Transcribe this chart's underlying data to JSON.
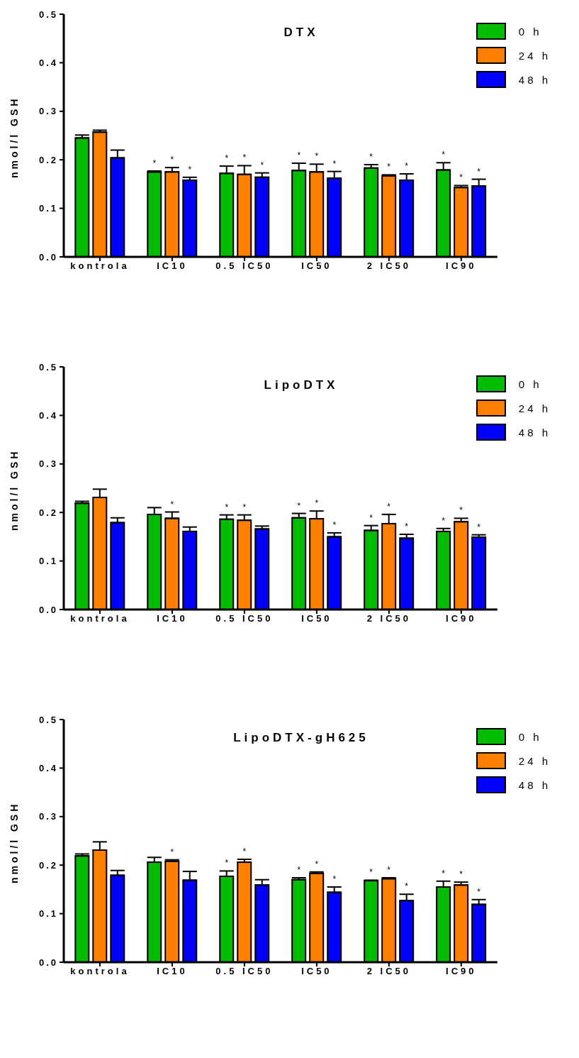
{
  "chart_data": [
    {
      "type": "bar",
      "title": "DTX",
      "ylabel": "nmol/l GSH",
      "categories": [
        "kontrola",
        "IC10",
        "0.5 IC50",
        "IC50",
        "2 IC50",
        "IC90"
      ],
      "ylim": [
        0,
        0.5
      ],
      "yticks": [
        {
          "value": 0,
          "label": "0.0"
        },
        {
          "value": 0.1,
          "label": "0.1"
        },
        {
          "value": 0.2,
          "label": "0.2"
        },
        {
          "value": 0.3,
          "label": "0.3"
        },
        {
          "value": 0.4,
          "label": "0.4"
        },
        {
          "value": 0.5,
          "label": "0.5"
        }
      ],
      "legend": "top right",
      "series": [
        {
          "name": "0 h",
          "color": "#00bb00",
          "values": [
            0.245,
            0.175,
            0.172,
            0.178,
            0.183,
            0.179
          ],
          "errors": [
            [
              0.245,
              0.251
            ],
            [
              0.175,
              0.177
            ],
            [
              0.172,
              0.187
            ],
            [
              0.178,
              0.193
            ],
            [
              0.183,
              0.19
            ],
            [
              0.179,
              0.194
            ]
          ],
          "value_labels": [
            null,
            "*",
            "*",
            "*",
            "*",
            "*"
          ]
        },
        {
          "name": "24 h",
          "color": "#ff7f00",
          "values": [
            0.257,
            0.175,
            0.17,
            0.175,
            0.167,
            0.143
          ],
          "errors": [
            [
              0.257,
              0.261
            ],
            [
              0.175,
              0.184
            ],
            [
              0.17,
              0.188
            ],
            [
              0.175,
              0.191
            ],
            [
              0.167,
              0.169
            ],
            [
              0.143,
              0.147
            ]
          ],
          "value_labels": [
            null,
            "*",
            "*",
            "*",
            "*",
            "*"
          ]
        },
        {
          "name": "48 h",
          "color": "#0000ff",
          "values": [
            0.204,
            0.158,
            0.164,
            0.162,
            0.158,
            0.146
          ],
          "errors": [
            [
              0.204,
              0.22
            ],
            [
              0.158,
              0.164
            ],
            [
              0.164,
              0.173
            ],
            [
              0.162,
              0.176
            ],
            [
              0.158,
              0.171
            ],
            [
              0.146,
              0.16
            ]
          ],
          "value_labels": [
            null,
            "*",
            "*",
            "*",
            "*",
            "*"
          ]
        }
      ]
    },
    {
      "type": "bar",
      "title": "LipoDTX",
      "ylabel": "nmol/l GSH",
      "categories": [
        "kontrola",
        "IC10",
        "0.5 IC50",
        "IC50",
        "2 IC50",
        "IC90"
      ],
      "ylim": [
        0,
        0.5
      ],
      "yticks": [
        {
          "value": 0,
          "label": "0.0"
        },
        {
          "value": 0.1,
          "label": "0.1"
        },
        {
          "value": 0.2,
          "label": "0.2"
        },
        {
          "value": 0.3,
          "label": "0.3"
        },
        {
          "value": 0.4,
          "label": "0.4"
        },
        {
          "value": 0.5,
          "label": "0.5"
        }
      ],
      "legend": "top right",
      "series": [
        {
          "name": "0 h",
          "color": "#00bb00",
          "values": [
            0.219,
            0.196,
            0.186,
            0.189,
            0.163,
            0.161
          ],
          "errors": [
            [
              0.219,
              0.223
            ],
            [
              0.196,
              0.21
            ],
            [
              0.186,
              0.195
            ],
            [
              0.189,
              0.198
            ],
            [
              0.163,
              0.173
            ],
            [
              0.161,
              0.167
            ]
          ],
          "value_labels": [
            null,
            null,
            "*",
            "*",
            "*",
            "*"
          ]
        },
        {
          "name": "24 h",
          "color": "#ff7f00",
          "values": [
            0.231,
            0.188,
            0.184,
            0.187,
            0.177,
            0.181
          ],
          "errors": [
            [
              0.231,
              0.248
            ],
            [
              0.188,
              0.201
            ],
            [
              0.184,
              0.195
            ],
            [
              0.187,
              0.203
            ],
            [
              0.177,
              0.196
            ],
            [
              0.181,
              0.188
            ]
          ],
          "value_labels": [
            null,
            "*",
            "*",
            "*",
            "*",
            "*"
          ]
        },
        {
          "name": "48 h",
          "color": "#0000ff",
          "values": [
            0.179,
            0.161,
            0.166,
            0.15,
            0.147,
            0.149
          ],
          "errors": [
            [
              0.179,
              0.189
            ],
            [
              0.161,
              0.17
            ],
            [
              0.166,
              0.172
            ],
            [
              0.15,
              0.158
            ],
            [
              0.147,
              0.155
            ],
            [
              0.149,
              0.154
            ]
          ],
          "value_labels": [
            null,
            null,
            null,
            "*",
            "*",
            "*"
          ]
        }
      ]
    },
    {
      "type": "bar",
      "title": "LipoDTX-gH625",
      "ylabel": "nmol/l GSH",
      "categories": [
        "kontrola",
        "IC10",
        "0.5 IC50",
        "IC50",
        "2 IC50",
        "IC90"
      ],
      "ylim": [
        0,
        0.5
      ],
      "yticks": [
        {
          "value": 0,
          "label": "0.0"
        },
        {
          "value": 0.1,
          "label": "0.1"
        },
        {
          "value": 0.2,
          "label": "0.2"
        },
        {
          "value": 0.3,
          "label": "0.3"
        },
        {
          "value": 0.4,
          "label": "0.4"
        },
        {
          "value": 0.5,
          "label": "0.5"
        }
      ],
      "legend": "top right",
      "series": [
        {
          "name": "0 h",
          "color": "#00bb00",
          "values": [
            0.219,
            0.206,
            0.177,
            0.17,
            0.168,
            0.155
          ],
          "errors": [
            [
              0.219,
              0.223
            ],
            [
              0.206,
              0.216
            ],
            [
              0.177,
              0.188
            ],
            [
              0.17,
              0.174
            ],
            [
              0.168,
              0.169
            ],
            [
              0.155,
              0.167
            ]
          ],
          "value_labels": [
            null,
            null,
            "*",
            "*",
            "*",
            "*"
          ]
        },
        {
          "name": "24 h",
          "color": "#ff7f00",
          "values": [
            0.231,
            0.208,
            0.206,
            0.183,
            0.172,
            0.159
          ],
          "errors": [
            [
              0.231,
              0.248
            ],
            [
              0.208,
              0.211
            ],
            [
              0.206,
              0.212
            ],
            [
              0.183,
              0.186
            ],
            [
              0.172,
              0.174
            ],
            [
              0.159,
              0.165
            ]
          ],
          "value_labels": [
            null,
            "*",
            "*",
            "*",
            "*",
            "*"
          ]
        },
        {
          "name": "48 h",
          "color": "#0000ff",
          "values": [
            0.179,
            0.169,
            0.159,
            0.144,
            0.127,
            0.119
          ],
          "errors": [
            [
              0.179,
              0.189
            ],
            [
              0.169,
              0.187
            ],
            [
              0.159,
              0.17
            ],
            [
              0.144,
              0.155
            ],
            [
              0.127,
              0.14
            ],
            [
              0.119,
              0.129
            ]
          ],
          "value_labels": [
            null,
            null,
            null,
            "*",
            "*",
            "*"
          ]
        }
      ]
    }
  ]
}
